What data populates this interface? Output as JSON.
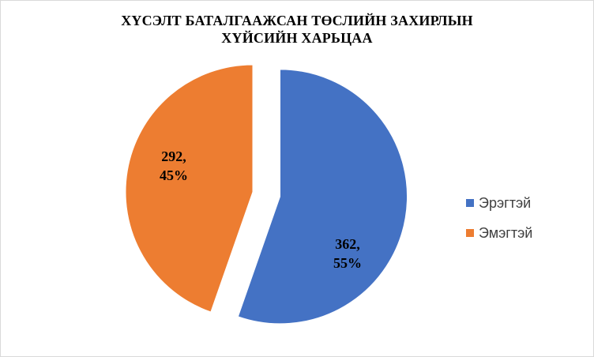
{
  "chart_data": {
    "type": "pie",
    "title_lines": [
      "ХҮСЭЛТ БАТАЛГААЖСАН ТӨСЛИЙН ЗАХИРЛЫН",
      "ХҮЙСИЙН ХАРЬЦАА"
    ],
    "legend_placement": "right",
    "slices": [
      {
        "name": "Эрэгтэй",
        "value": 362,
        "percent": 55,
        "label_value": "362,",
        "label_percent": "55%",
        "color": "#4472C4",
        "exploded": true
      },
      {
        "name": "Эмэгтэй",
        "value": 292,
        "percent": 45,
        "label_value": "292,",
        "label_percent": "45%",
        "color": "#ED7D31",
        "exploded": false
      }
    ]
  }
}
